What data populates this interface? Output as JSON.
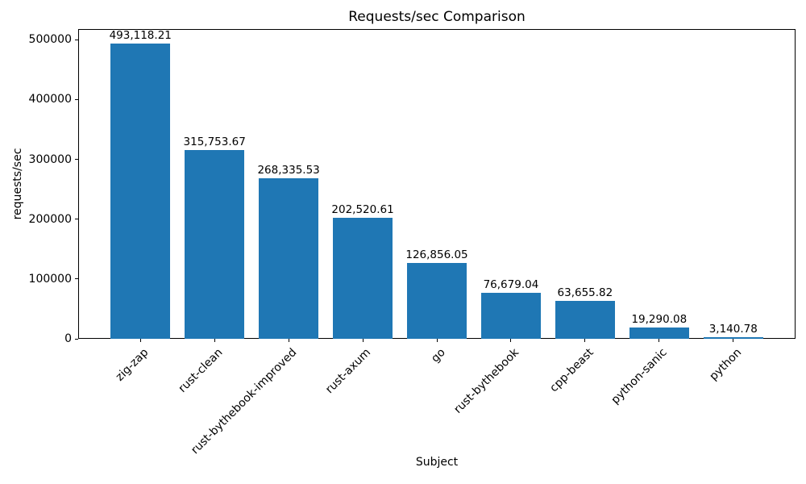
{
  "chart_data": {
    "type": "bar",
    "title": "Requests/sec Comparison",
    "xlabel": "Subject",
    "ylabel": "requests/sec",
    "categories": [
      "zig-zap",
      "rust-clean",
      "rust-bythebook-improved",
      "rust-axum",
      "go",
      "rust-bythebook",
      "cpp-beast",
      "python-sanic",
      "python"
    ],
    "values": [
      493118.21,
      315753.67,
      268335.53,
      202520.61,
      126856.05,
      76679.04,
      63655.82,
      19290.08,
      3140.78
    ],
    "value_labels": [
      "493,118.21",
      "315,753.67",
      "268,335.53",
      "202,520.61",
      "126,856.05",
      "76,679.04",
      "63,655.82",
      "19,290.08",
      "3,140.78"
    ],
    "yticks": [
      0,
      100000,
      200000,
      300000,
      400000,
      500000
    ],
    "ytick_labels": [
      "0",
      "100000",
      "200000",
      "300000",
      "400000",
      "500000"
    ],
    "ylim": [
      0,
      517774
    ],
    "bar_color": "#1f77b4",
    "grid": false,
    "legend": null,
    "x_tick_rotation_deg": 45
  }
}
